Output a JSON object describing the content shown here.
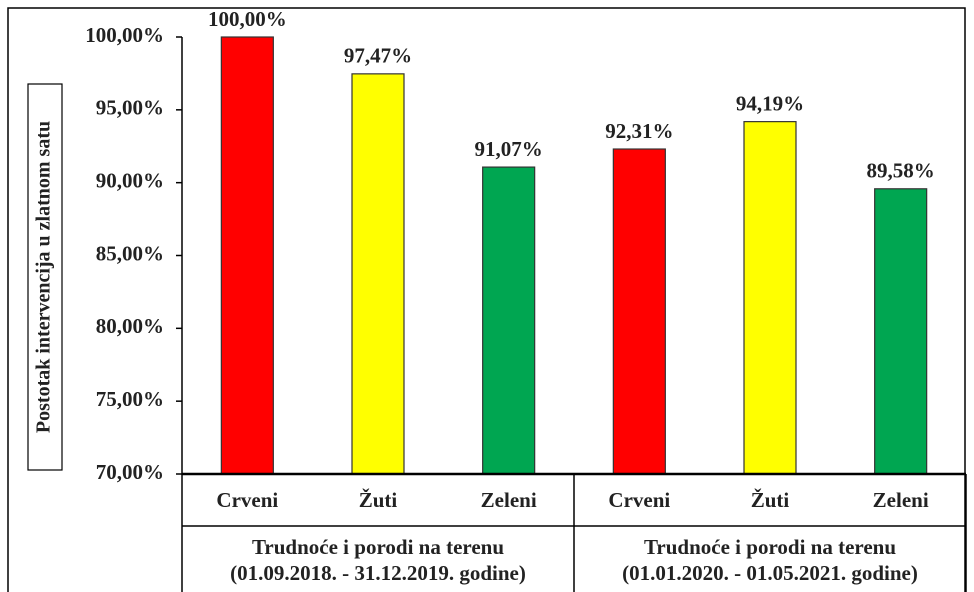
{
  "chart_data": {
    "type": "bar",
    "y_label": "Postotak intervencija u zlatnom satu",
    "categories": [
      "Crveni",
      "Žuti",
      "Zeleni",
      "Crveni",
      "Žuti",
      "Zeleni"
    ],
    "values": [
      100,
      97.47,
      91.07,
      92.31,
      94.19,
      89.58
    ],
    "value_labels": [
      "100,00%",
      "97,47%",
      "91,07%",
      "92,31%",
      "94,19%",
      "89,58%"
    ],
    "colors": [
      "#ff0000",
      "#ffff00",
      "#00a651",
      "#ff0000",
      "#ffff00",
      "#00a651"
    ],
    "groups": [
      {
        "name": "Trudnoće i porodi na terenu",
        "period": "(01.09.2018. - 31.12.2019. godine)",
        "size": 3
      },
      {
        "name": "Trudnoće i porodi na terenu",
        "period": "(01.01.2020. - 01.05.2021. godine)",
        "size": 3
      }
    ],
    "ylim": [
      70,
      100
    ],
    "yticks": [
      {
        "value": 70,
        "label": "70,00%"
      },
      {
        "value": 75,
        "label": "75,00%"
      },
      {
        "value": 80,
        "label": "80,00%"
      },
      {
        "value": 85,
        "label": "85,00%"
      },
      {
        "value": 90,
        "label": "90,00%"
      },
      {
        "value": 95,
        "label": "95,00%"
      },
      {
        "value": 100,
        "label": "100,00%"
      }
    ]
  }
}
